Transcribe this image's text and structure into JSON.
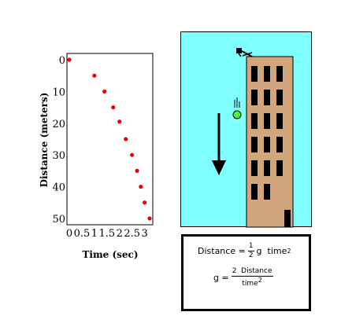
{
  "chart_data": {
    "type": "scatter",
    "xlabel": "Time (sec)",
    "ylabel": "Distance (meters)",
    "xlim": [
      0,
      3.2
    ],
    "ylim": [
      0,
      51
    ],
    "y_inverted": true,
    "x_ticks": [
      "0",
      "0.5",
      "1",
      "1.5",
      "2",
      "2.5",
      "3"
    ],
    "y_ticks": [
      "0",
      "10",
      "20",
      "30",
      "40",
      "50"
    ],
    "point_color": "#ee0000",
    "x": [
      0,
      1.0,
      1.4,
      1.75,
      2.0,
      2.25,
      2.5,
      2.7,
      2.85,
      3.0,
      3.2
    ],
    "y": [
      0,
      5,
      10,
      15,
      19.5,
      25,
      30,
      35,
      40,
      45,
      50
    ]
  },
  "scene": {
    "sky_color": "#7fffff",
    "building_color": "#d2a67c",
    "ball_color": "#55ee44"
  },
  "formula": {
    "line1_lhs": "Distance =",
    "line1_num": "1",
    "line1_den": "2",
    "line1_rhs": "g  time",
    "line1_exp": "2",
    "line2_lhs": "g =",
    "line2_num": "2  Distance",
    "line2_den": "time",
    "line2_exp": "2"
  }
}
